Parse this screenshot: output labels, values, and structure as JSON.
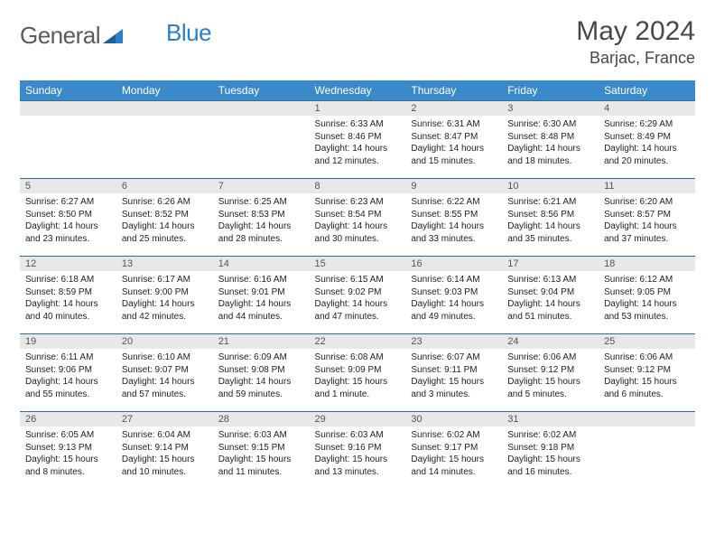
{
  "brand": {
    "part1": "General",
    "part2": "Blue"
  },
  "title": "May 2024",
  "location": "Barjac, France",
  "colors": {
    "header_bg": "#3a89c9",
    "header_text": "#ffffff",
    "border": "#2d6fa3",
    "daynum_bg": "#e8e8e8",
    "brand_gray": "#5a5a5a",
    "brand_blue": "#2a7fc9"
  },
  "weekdays": [
    "Sunday",
    "Monday",
    "Tuesday",
    "Wednesday",
    "Thursday",
    "Friday",
    "Saturday"
  ],
  "weeks": [
    [
      {
        "blank": true
      },
      {
        "blank": true
      },
      {
        "blank": true
      },
      {
        "day": "1",
        "sunrise": "Sunrise: 6:33 AM",
        "sunset": "Sunset: 8:46 PM",
        "daylight": "Daylight: 14 hours and 12 minutes."
      },
      {
        "day": "2",
        "sunrise": "Sunrise: 6:31 AM",
        "sunset": "Sunset: 8:47 PM",
        "daylight": "Daylight: 14 hours and 15 minutes."
      },
      {
        "day": "3",
        "sunrise": "Sunrise: 6:30 AM",
        "sunset": "Sunset: 8:48 PM",
        "daylight": "Daylight: 14 hours and 18 minutes."
      },
      {
        "day": "4",
        "sunrise": "Sunrise: 6:29 AM",
        "sunset": "Sunset: 8:49 PM",
        "daylight": "Daylight: 14 hours and 20 minutes."
      }
    ],
    [
      {
        "day": "5",
        "sunrise": "Sunrise: 6:27 AM",
        "sunset": "Sunset: 8:50 PM",
        "daylight": "Daylight: 14 hours and 23 minutes."
      },
      {
        "day": "6",
        "sunrise": "Sunrise: 6:26 AM",
        "sunset": "Sunset: 8:52 PM",
        "daylight": "Daylight: 14 hours and 25 minutes."
      },
      {
        "day": "7",
        "sunrise": "Sunrise: 6:25 AM",
        "sunset": "Sunset: 8:53 PM",
        "daylight": "Daylight: 14 hours and 28 minutes."
      },
      {
        "day": "8",
        "sunrise": "Sunrise: 6:23 AM",
        "sunset": "Sunset: 8:54 PM",
        "daylight": "Daylight: 14 hours and 30 minutes."
      },
      {
        "day": "9",
        "sunrise": "Sunrise: 6:22 AM",
        "sunset": "Sunset: 8:55 PM",
        "daylight": "Daylight: 14 hours and 33 minutes."
      },
      {
        "day": "10",
        "sunrise": "Sunrise: 6:21 AM",
        "sunset": "Sunset: 8:56 PM",
        "daylight": "Daylight: 14 hours and 35 minutes."
      },
      {
        "day": "11",
        "sunrise": "Sunrise: 6:20 AM",
        "sunset": "Sunset: 8:57 PM",
        "daylight": "Daylight: 14 hours and 37 minutes."
      }
    ],
    [
      {
        "day": "12",
        "sunrise": "Sunrise: 6:18 AM",
        "sunset": "Sunset: 8:59 PM",
        "daylight": "Daylight: 14 hours and 40 minutes."
      },
      {
        "day": "13",
        "sunrise": "Sunrise: 6:17 AM",
        "sunset": "Sunset: 9:00 PM",
        "daylight": "Daylight: 14 hours and 42 minutes."
      },
      {
        "day": "14",
        "sunrise": "Sunrise: 6:16 AM",
        "sunset": "Sunset: 9:01 PM",
        "daylight": "Daylight: 14 hours and 44 minutes."
      },
      {
        "day": "15",
        "sunrise": "Sunrise: 6:15 AM",
        "sunset": "Sunset: 9:02 PM",
        "daylight": "Daylight: 14 hours and 47 minutes."
      },
      {
        "day": "16",
        "sunrise": "Sunrise: 6:14 AM",
        "sunset": "Sunset: 9:03 PM",
        "daylight": "Daylight: 14 hours and 49 minutes."
      },
      {
        "day": "17",
        "sunrise": "Sunrise: 6:13 AM",
        "sunset": "Sunset: 9:04 PM",
        "daylight": "Daylight: 14 hours and 51 minutes."
      },
      {
        "day": "18",
        "sunrise": "Sunrise: 6:12 AM",
        "sunset": "Sunset: 9:05 PM",
        "daylight": "Daylight: 14 hours and 53 minutes."
      }
    ],
    [
      {
        "day": "19",
        "sunrise": "Sunrise: 6:11 AM",
        "sunset": "Sunset: 9:06 PM",
        "daylight": "Daylight: 14 hours and 55 minutes."
      },
      {
        "day": "20",
        "sunrise": "Sunrise: 6:10 AM",
        "sunset": "Sunset: 9:07 PM",
        "daylight": "Daylight: 14 hours and 57 minutes."
      },
      {
        "day": "21",
        "sunrise": "Sunrise: 6:09 AM",
        "sunset": "Sunset: 9:08 PM",
        "daylight": "Daylight: 14 hours and 59 minutes."
      },
      {
        "day": "22",
        "sunrise": "Sunrise: 6:08 AM",
        "sunset": "Sunset: 9:09 PM",
        "daylight": "Daylight: 15 hours and 1 minute."
      },
      {
        "day": "23",
        "sunrise": "Sunrise: 6:07 AM",
        "sunset": "Sunset: 9:11 PM",
        "daylight": "Daylight: 15 hours and 3 minutes."
      },
      {
        "day": "24",
        "sunrise": "Sunrise: 6:06 AM",
        "sunset": "Sunset: 9:12 PM",
        "daylight": "Daylight: 15 hours and 5 minutes."
      },
      {
        "day": "25",
        "sunrise": "Sunrise: 6:06 AM",
        "sunset": "Sunset: 9:12 PM",
        "daylight": "Daylight: 15 hours and 6 minutes."
      }
    ],
    [
      {
        "day": "26",
        "sunrise": "Sunrise: 6:05 AM",
        "sunset": "Sunset: 9:13 PM",
        "daylight": "Daylight: 15 hours and 8 minutes."
      },
      {
        "day": "27",
        "sunrise": "Sunrise: 6:04 AM",
        "sunset": "Sunset: 9:14 PM",
        "daylight": "Daylight: 15 hours and 10 minutes."
      },
      {
        "day": "28",
        "sunrise": "Sunrise: 6:03 AM",
        "sunset": "Sunset: 9:15 PM",
        "daylight": "Daylight: 15 hours and 11 minutes."
      },
      {
        "day": "29",
        "sunrise": "Sunrise: 6:03 AM",
        "sunset": "Sunset: 9:16 PM",
        "daylight": "Daylight: 15 hours and 13 minutes."
      },
      {
        "day": "30",
        "sunrise": "Sunrise: 6:02 AM",
        "sunset": "Sunset: 9:17 PM",
        "daylight": "Daylight: 15 hours and 14 minutes."
      },
      {
        "day": "31",
        "sunrise": "Sunrise: 6:02 AM",
        "sunset": "Sunset: 9:18 PM",
        "daylight": "Daylight: 15 hours and 16 minutes."
      },
      {
        "blank": true
      }
    ]
  ]
}
